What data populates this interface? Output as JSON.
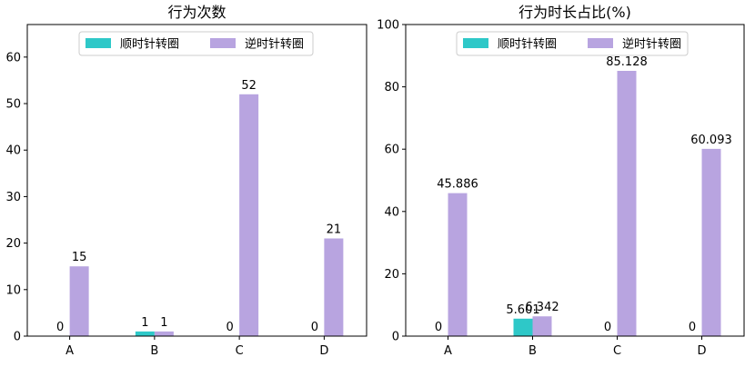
{
  "chart_data": [
    {
      "type": "bar",
      "title": "行为次数",
      "categories": [
        "A",
        "B",
        "C",
        "D"
      ],
      "series": [
        {
          "name": "顺时针转圈",
          "values": [
            0,
            1,
            0,
            0
          ],
          "labels": [
            "0",
            "1",
            "0",
            "0"
          ],
          "color": "#2ec8c8"
        },
        {
          "name": "逆时针转圈",
          "values": [
            15,
            1,
            52,
            21
          ],
          "labels": [
            "15",
            "1",
            "52",
            "21"
          ],
          "color": "#b8a4e0"
        }
      ],
      "xlabel": "",
      "ylabel": "",
      "ylim": [
        0,
        67
      ],
      "yticks": [
        0,
        10,
        20,
        30,
        40,
        50,
        60
      ],
      "grid": false,
      "legend_position": "top-center"
    },
    {
      "type": "bar",
      "title": "行为时长占比(%)",
      "categories": [
        "A",
        "B",
        "C",
        "D"
      ],
      "series": [
        {
          "name": "顺时针转圈",
          "values": [
            0,
            5.601,
            0,
            0
          ],
          "labels": [
            "0",
            "5.601",
            "0",
            "0"
          ],
          "color": "#2ec8c8"
        },
        {
          "name": "逆时针转圈",
          "values": [
            45.886,
            6.342,
            85.128,
            60.093
          ],
          "labels": [
            "45.886",
            "6.342",
            "85.128",
            "60.093"
          ],
          "color": "#b8a4e0"
        }
      ],
      "xlabel": "",
      "ylabel": "",
      "ylim": [
        0,
        100
      ],
      "yticks": [
        0,
        20,
        40,
        60,
        80,
        100
      ],
      "grid": false,
      "legend_position": "top-center"
    }
  ]
}
